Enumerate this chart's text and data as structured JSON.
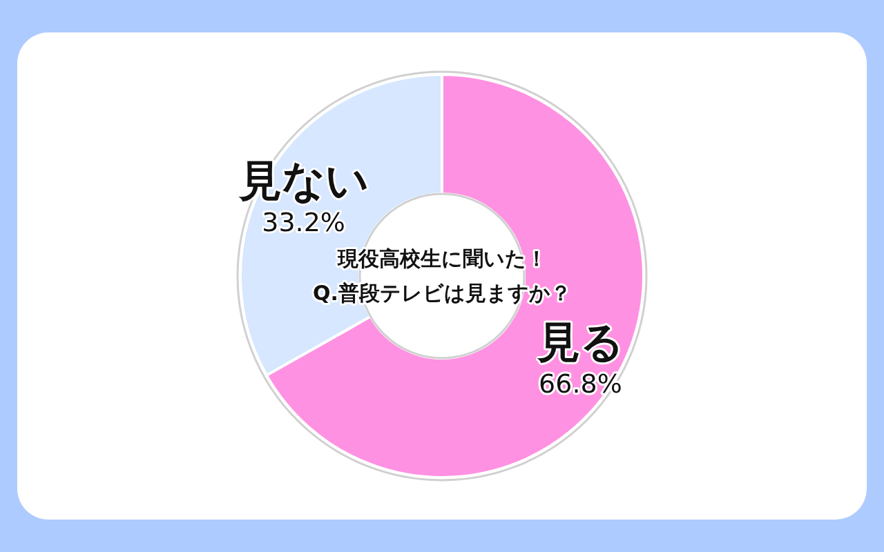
{
  "chart_data": {
    "type": "donut",
    "title": "現役高校生に聞いた！",
    "subtitle": "Q.普段テレビは見ますか？",
    "categories": [
      "見る",
      "見ない"
    ],
    "values": [
      66.8,
      33.2
    ],
    "colors": [
      "#ff91e2",
      "#d6e7ff"
    ],
    "value_labels": [
      "66.8%",
      "33.2%"
    ]
  }
}
